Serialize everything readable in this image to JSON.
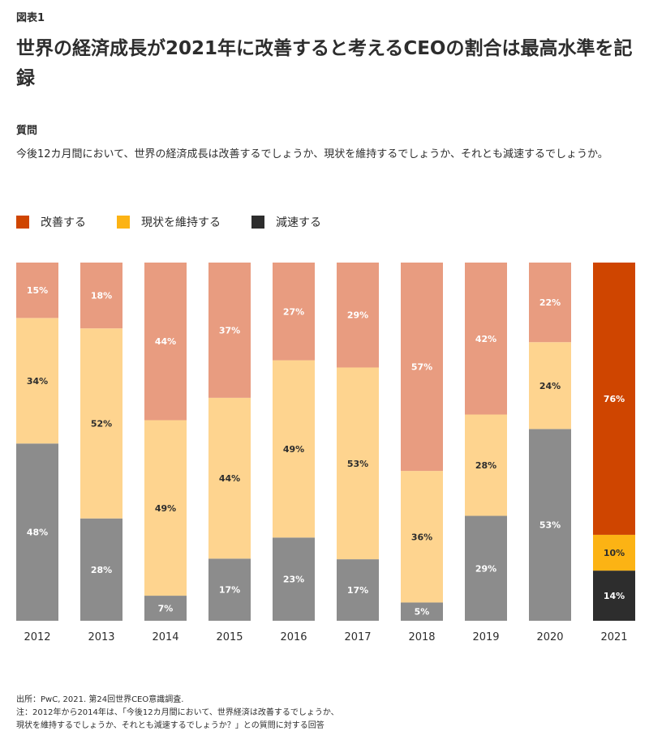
{
  "header": {
    "figure_label": "図表1",
    "title": "世界の経済成長が2021年に改善すると考えるCEOの割合は最高水準を記録"
  },
  "question": {
    "label": "質問",
    "text": "今後12カ月間において、世界の経済成長は改善するでしょうか、現状を維持するでしょうか、それとも減速するでしょうか。"
  },
  "colors": {
    "improve": "#e89c80",
    "improve_highlight": "#cf4500",
    "maintain": "#fed48f",
    "maintain_highlight": "#fcb314",
    "decline": "#8c8c8c",
    "decline_highlight": "#2d2d2d",
    "legend_improve": "#cf4500",
    "legend_maintain": "#fcb314",
    "legend_decline": "#2d2d2d"
  },
  "chart_data": {
    "type": "bar",
    "stacked": true,
    "normalized": true,
    "categories": [
      "2012",
      "2013",
      "2014",
      "2015",
      "2016",
      "2017",
      "2018",
      "2019",
      "2020",
      "2021"
    ],
    "series": [
      {
        "name": "減速する",
        "key": "decline",
        "values": [
          48,
          28,
          7,
          17,
          23,
          17,
          5,
          29,
          53,
          14
        ]
      },
      {
        "name": "現状を維持する",
        "key": "maintain",
        "values": [
          34,
          52,
          49,
          44,
          49,
          53,
          36,
          28,
          24,
          10
        ]
      },
      {
        "name": "改善する",
        "key": "improve",
        "values": [
          15,
          18,
          44,
          37,
          27,
          29,
          57,
          42,
          22,
          76
        ]
      }
    ],
    "highlight_category": "2021",
    "value_suffix": "%",
    "legend": [
      "改善する",
      "現状を維持する",
      "減速する"
    ],
    "legend_position": "top-left"
  },
  "footer": {
    "source": "出所：PwC, 2021. 第24回世界CEO意識調査.",
    "note_line1": "注：2012年から2014年は、「今後12カ月間において、世界経済は改善するでしょうか、",
    "note_line2": "現状を維持するでしょうか、それとも減速するでしょうか？」との質問に対する回答"
  }
}
